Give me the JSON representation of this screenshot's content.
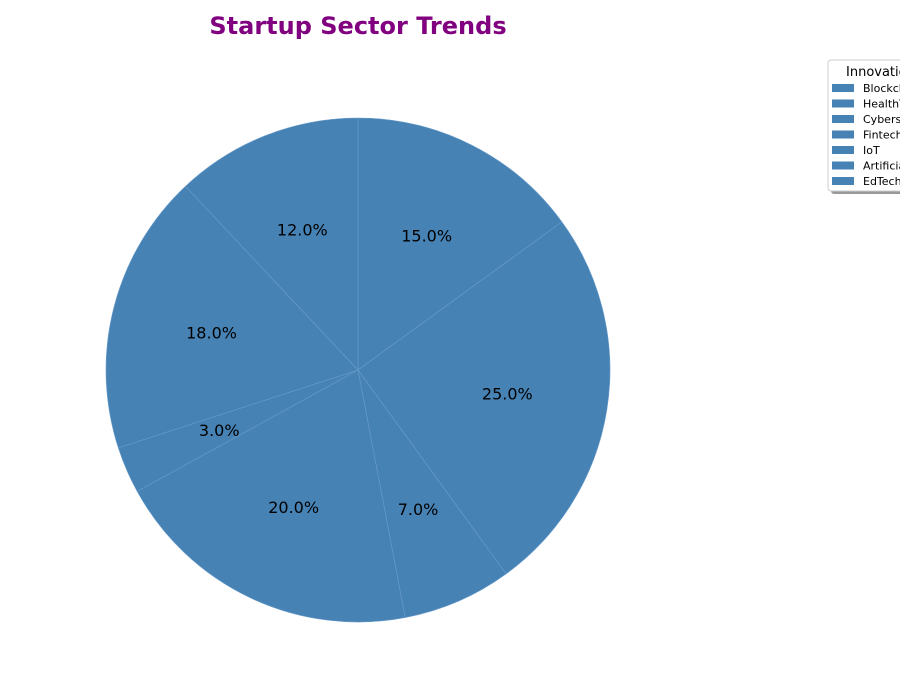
{
  "chart_data": {
    "type": "pie",
    "title": "Startup Sector Trends",
    "categories": [
      "Blockchain",
      "HealthTech",
      "Cybersecurity",
      "Fintech",
      "IoT",
      "Artificial Intelligence",
      "EdTech"
    ],
    "values": [
      15.0,
      25.0,
      7.0,
      20.0,
      3.0,
      18.0,
      12.0
    ],
    "value_labels": [
      "15.0%",
      "25.0%",
      "7.0%",
      "20.0%",
      "3.0%",
      "18.0%",
      "12.0%"
    ],
    "legend_title": "Innovation Areas",
    "legend_placement": "top-right",
    "start_angle_deg": 90,
    "direction": "clockwise"
  },
  "colors": {
    "slice": "#4682b4",
    "slice_edge": "#6a9ccc",
    "title": "#800080"
  }
}
